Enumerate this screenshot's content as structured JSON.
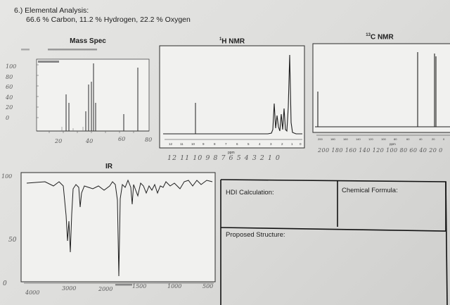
{
  "problem": {
    "title": "6.) Elemental Analysis:",
    "composition": "66.6 % Carbon, 11.2 % Hydrogen, 22.2 % Oxygen"
  },
  "panels": {
    "mass_spec": {
      "title": "Mass Spec",
      "hand_y": [
        "100",
        "80",
        "60",
        "40",
        "20",
        "0"
      ],
      "hand_x": [
        "20",
        "40",
        "60",
        "80"
      ]
    },
    "h_nmr": {
      "title_sup": "1",
      "title": "H NMR",
      "ticks": [
        "12",
        "11",
        "10",
        "9",
        "8",
        "7",
        "6",
        "5",
        "4",
        "3",
        "2",
        "1",
        "0"
      ],
      "unit": "ppm",
      "hand_x": "12 11 10 9 8 7 6 5 4 3 2 1 0"
    },
    "c_nmr": {
      "title_sup": "13",
      "title": "C NMR",
      "ticks": [
        "200",
        "180",
        "160",
        "140",
        "120",
        "100",
        "80",
        "60",
        "40",
        "20",
        "0"
      ],
      "unit": "ppm",
      "hand_x": "200 180 160 140 120 100 80 60 40 20 0"
    },
    "ir": {
      "title": "IR",
      "hand_y": [
        "100",
        "50",
        "0"
      ],
      "hand_x": [
        "4000",
        "3000",
        "2000",
        "1500",
        "1000",
        "500"
      ]
    }
  },
  "answer_boxes": {
    "hdi_label": "HDI Calculation:",
    "formula_label": "Chemical Formula:",
    "structure_label": "Proposed Structure:"
  }
}
